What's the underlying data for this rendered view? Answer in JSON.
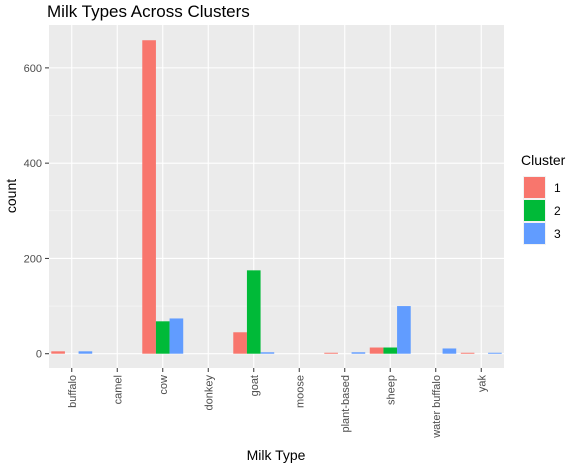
{
  "chart_data": {
    "type": "bar",
    "title": "Milk Types Across Clusters",
    "xlabel": "Milk Type",
    "ylabel": "count",
    "categories": [
      "buffalo",
      "camel",
      "cow",
      "donkey",
      "goat",
      "moose",
      "plant-based",
      "sheep",
      "water buffalo",
      "yak"
    ],
    "ylim": [
      -30,
      690
    ],
    "yticks": [
      0,
      200,
      400,
      600
    ],
    "grid": true,
    "legend": {
      "title": "Cluster",
      "position": "right"
    },
    "series": [
      {
        "name": "1",
        "color": "#F8766D",
        "values": [
          5,
          0,
          658,
          0,
          45,
          0,
          2,
          13,
          0,
          2
        ]
      },
      {
        "name": "2",
        "color": "#00BA38",
        "values": [
          0,
          0,
          68,
          0,
          175,
          0,
          0,
          13,
          0,
          0
        ]
      },
      {
        "name": "3",
        "color": "#619CFF",
        "values": [
          5,
          0,
          74,
          0,
          3,
          0,
          3,
          100,
          11,
          2
        ]
      }
    ]
  }
}
